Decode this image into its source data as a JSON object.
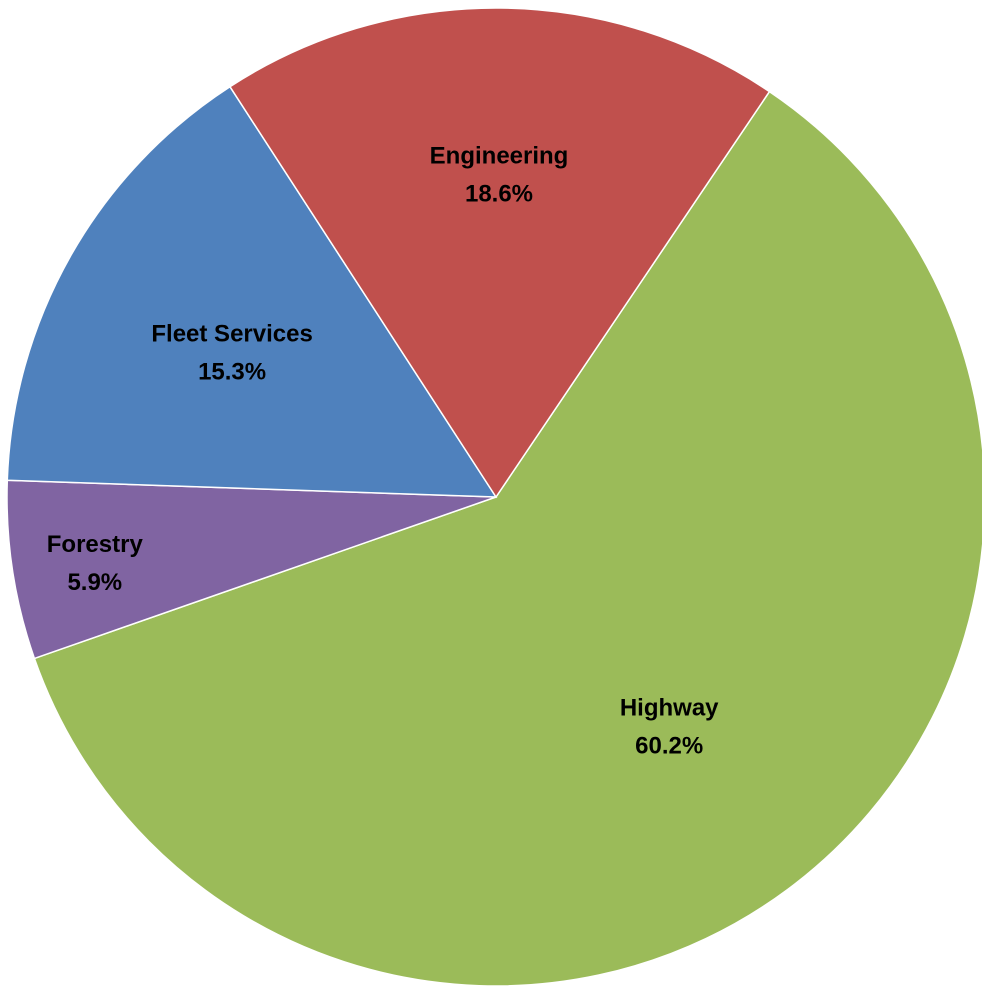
{
  "chart_data": {
    "type": "pie",
    "title": "",
    "slices": [
      {
        "label": "Highway",
        "value": 60.2,
        "value_label": "60.2%",
        "color": "#9BBB59"
      },
      {
        "label": "Forestry",
        "value": 5.9,
        "value_label": "5.9%",
        "color": "#8064A2"
      },
      {
        "label": "Fleet Services",
        "value": 15.3,
        "value_label": "15.3%",
        "color": "#4F81BD"
      },
      {
        "label": "Engineering",
        "value": 18.6,
        "value_label": "18.6%",
        "color": "#C0504D"
      }
    ],
    "start_angle_deg_clockwise_from_top": 34,
    "legend": "none",
    "labels": "on-slice"
  }
}
